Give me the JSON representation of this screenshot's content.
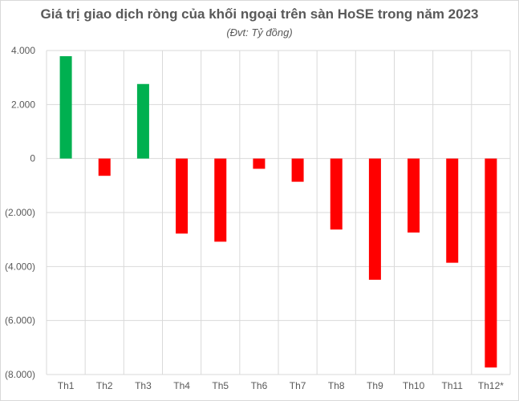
{
  "chart_data": {
    "type": "bar",
    "title": "Giá trị giao dịch ròng của khối ngoại trên sàn HoSE trong năm 2023",
    "subtitle": "(Đvt: Tỷ đồng)",
    "xlabel": "",
    "ylabel": "",
    "categories": [
      "Th1",
      "Th2",
      "Th3",
      "Th4",
      "Th5",
      "Th6",
      "Th7",
      "Th8",
      "Th9",
      "Th10",
      "Th11",
      "Th12*"
    ],
    "values": [
      3790,
      -640,
      2760,
      -2780,
      -3080,
      -380,
      -860,
      -2630,
      -4490,
      -2740,
      -3860,
      -7740
    ],
    "ylim": [
      -8000,
      4000
    ],
    "yticks": [
      4000,
      2000,
      0,
      -2000,
      -4000,
      -6000,
      -8000
    ],
    "ytick_labels": [
      "4.000",
      "2.000",
      "0",
      "(2.000)",
      "(4.000)",
      "(6.000)",
      "(8.000)"
    ],
    "grid": true,
    "colors": {
      "positive": "#00b050",
      "negative": "#ff0000",
      "grid": "#d9d9d9"
    }
  }
}
